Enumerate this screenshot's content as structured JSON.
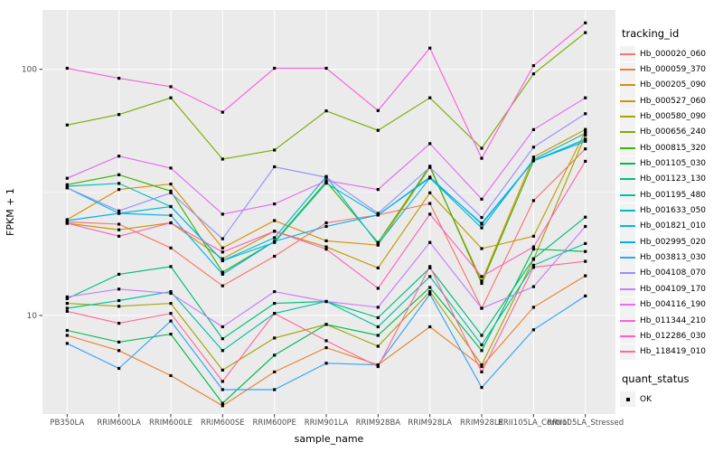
{
  "figure": {
    "background": "#FFFFFF",
    "panel_background": "#EBEBEB",
    "grid_color": "#FFFFFF",
    "tick_color": "#333333",
    "tick_label_color": "#4D4D4D",
    "axis_title_color": "#000000",
    "point_color": "#000000"
  },
  "legend": {
    "tracking_title": "tracking_id",
    "quant_title": "quant_status",
    "quant_items": [
      {
        "label": "OK",
        "shape": "square",
        "color": "#000000"
      }
    ]
  },
  "chart_data": {
    "type": "line",
    "title": "",
    "xlabel": "sample_name",
    "ylabel": "FPKM + 1",
    "y_scale": "log10",
    "y_ticks": [
      100,
      10
    ],
    "y_tick_labels": [
      "100",
      "10"
    ],
    "y_minor_ticks": [
      31.6
    ],
    "ylim": [
      4.0,
      174
    ],
    "grid": true,
    "legend_position": "right",
    "categories": [
      "PB350LA",
      "RRIM600LA",
      "RRIM600LE",
      "RRIM600SE",
      "RRIM600PE",
      "RRIM901LA",
      "RRIM928BA",
      "RRIM928LA",
      "RRIM928LE",
      "RRII105LA_Control",
      "RRII105LA_Stressed"
    ],
    "series": [
      {
        "name": "Hb_000020_060",
        "color": "#F8766D",
        "values": [
          24,
          23.5,
          18.8,
          13.2,
          17.4,
          23.8,
          25.6,
          28.5,
          10.7,
          29.3,
          47.5
        ]
      },
      {
        "name": "Hb_000059_370",
        "color": "#EA8331",
        "values": [
          8.3,
          7.2,
          5.7,
          4.3,
          5.9,
          7.4,
          6.3,
          9.0,
          6.2,
          10.8,
          14.5
        ]
      },
      {
        "name": "Hb_000205_090",
        "color": "#D89000",
        "values": [
          24.5,
          32.5,
          34.2,
          18.8,
          24.3,
          20.1,
          19.3,
          40.0,
          13.8,
          44.0,
          57.0
        ]
      },
      {
        "name": "Hb_000527_060",
        "color": "#C09B00",
        "values": [
          23.7,
          22.3,
          23.8,
          17.0,
          22.0,
          19.0,
          15.6,
          31.5,
          18.7,
          21.0,
          56.0
        ]
      },
      {
        "name": "Hb_000580_090",
        "color": "#A3A500",
        "values": [
          11.2,
          10.9,
          11.2,
          6.0,
          8.1,
          9.2,
          7.5,
          12.5,
          6.3,
          16.9,
          54.0
        ]
      },
      {
        "name": "Hb_000656_240",
        "color": "#7CAE00",
        "values": [
          59.4,
          65.5,
          76.6,
          43.2,
          47.0,
          67.8,
          56.5,
          76.6,
          47.8,
          95.9,
          141.0
        ]
      },
      {
        "name": "Hb_000815_320",
        "color": "#39B600",
        "values": [
          34.0,
          37.3,
          32.0,
          15.0,
          20.0,
          35.0,
          19.8,
          40.4,
          13.5,
          42.5,
          52.0
        ]
      },
      {
        "name": "Hb_001105_030",
        "color": "#00BB4E",
        "values": [
          8.7,
          7.8,
          8.4,
          4.4,
          6.9,
          9.2,
          8.3,
          13.0,
          7.2,
          18.6,
          18.2
        ]
      },
      {
        "name": "Hb_001123_130",
        "color": "#00BF7D",
        "values": [
          11.7,
          14.7,
          15.8,
          8.05,
          11.2,
          11.4,
          9.8,
          15.6,
          8.3,
          17.0,
          25.1
        ]
      },
      {
        "name": "Hb_001195_480",
        "color": "#00C1A3",
        "values": [
          10.7,
          11.5,
          12.5,
          7.2,
          10.2,
          11.4,
          9.0,
          14.4,
          7.6,
          16.0,
          19.6
        ]
      },
      {
        "name": "Hb_001633_050",
        "color": "#00BFC4",
        "values": [
          33.5,
          34.4,
          27.7,
          16.7,
          19.8,
          34.5,
          25.6,
          36.2,
          22.7,
          43.0,
          55.0
        ]
      },
      {
        "name": "Hb_001821_010",
        "color": "#00BAE0",
        "values": [
          33.0,
          26.0,
          27.7,
          16.7,
          20.7,
          36.7,
          19.5,
          36.2,
          23.7,
          42.5,
          51.9
        ]
      },
      {
        "name": "Hb_002995_020",
        "color": "#00B0F6",
        "values": [
          24.3,
          26.0,
          25.5,
          14.7,
          20.0,
          23.0,
          25.6,
          36.5,
          23.5,
          42.5,
          51.0
        ]
      },
      {
        "name": "Hb_003813_030",
        "color": "#35A2FF",
        "values": [
          7.7,
          6.1,
          9.5,
          5.0,
          5.0,
          6.4,
          6.3,
          12.2,
          5.1,
          8.75,
          12.0
        ]
      },
      {
        "name": "Hb_004108_070",
        "color": "#9590FF",
        "values": [
          33.0,
          26.6,
          31.5,
          20.5,
          40.2,
          36.4,
          26.0,
          40.0,
          25.0,
          48.3,
          66.0
        ]
      },
      {
        "name": "Hb_004109_170",
        "color": "#C77CFF",
        "values": [
          11.9,
          12.8,
          12.3,
          9.0,
          12.5,
          11.4,
          10.8,
          19.8,
          10.7,
          13.1,
          23.0
        ]
      },
      {
        "name": "Hb_004116_190",
        "color": "#E76BF3",
        "values": [
          36.1,
          44.4,
          39.7,
          25.8,
          28.4,
          35.3,
          32.5,
          49.9,
          29.7,
          56.9,
          76.6
        ]
      },
      {
        "name": "Hb_011344_210",
        "color": "#FA62DB",
        "values": [
          101,
          92,
          85,
          67,
          101,
          101,
          68,
          122,
          43.5,
          103.5,
          154.5
        ]
      },
      {
        "name": "Hb_012286_030",
        "color": "#FF62BC",
        "values": [
          23.7,
          21.0,
          23.8,
          18.1,
          22.0,
          18.6,
          12.9,
          25.8,
          14.4,
          19.0,
          42.3
        ]
      },
      {
        "name": "Hb_118419_010",
        "color": "#FF6A98",
        "values": [
          10.4,
          9.3,
          10.2,
          5.4,
          10.2,
          7.9,
          6.2,
          15.8,
          5.9,
          15.7,
          16.6
        ]
      }
    ]
  }
}
